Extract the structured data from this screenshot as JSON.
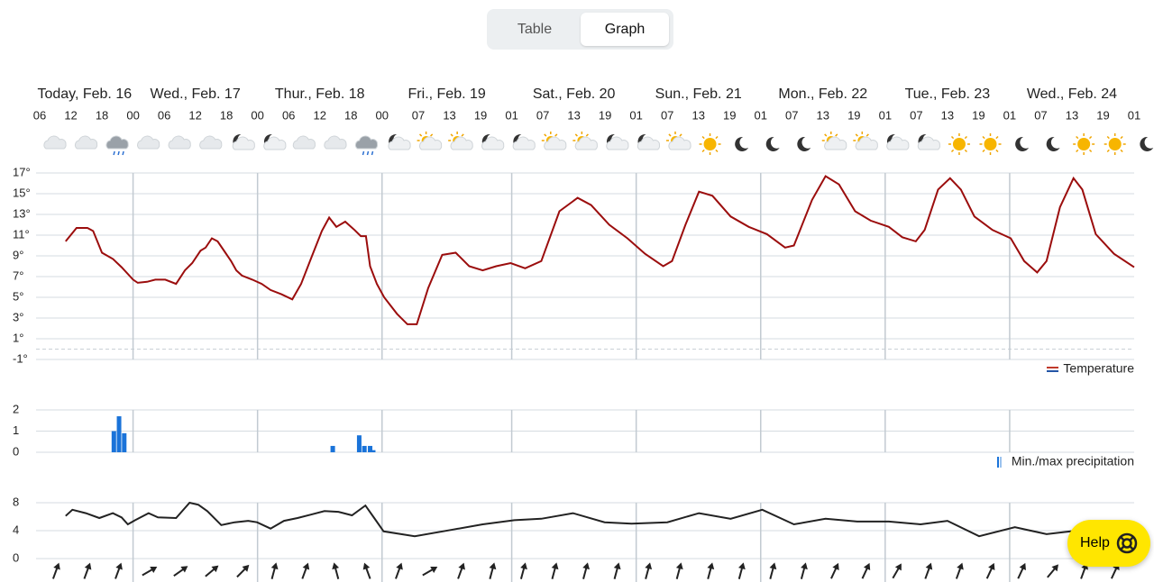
{
  "toggle": {
    "options": [
      "Table",
      "Graph"
    ],
    "selected": 1
  },
  "help": "Help",
  "chart_data": [
    {
      "type": "line",
      "name": "Temperature",
      "color": "#9b0d0d",
      "days": [
        "Today, Feb. 16",
        "Wed., Feb. 17",
        "Thur., Feb. 18",
        "Fri., Feb. 19",
        "Sat., Feb. 20",
        "Sun., Feb. 21",
        "Mon., Feb. 22",
        "Tue., Feb. 23",
        "Wed., Feb. 24"
      ],
      "day_lines": [
        24,
        48,
        72,
        97,
        121,
        145,
        169,
        193
      ],
      "xlim": [
        5.3,
        217
      ],
      "xticks": [
        {
          "value": 6,
          "label": "06"
        },
        {
          "value": 12,
          "label": "12"
        },
        {
          "value": 18,
          "label": "18"
        },
        {
          "value": 24,
          "label": "00"
        },
        {
          "value": 30,
          "label": "06"
        },
        {
          "value": 36,
          "label": "12"
        },
        {
          "value": 42,
          "label": "18"
        },
        {
          "value": 48,
          "label": "00"
        },
        {
          "value": 54,
          "label": "06"
        },
        {
          "value": 60,
          "label": "12"
        },
        {
          "value": 66,
          "label": "18"
        },
        {
          "value": 72,
          "label": "00"
        },
        {
          "value": 79,
          "label": "07"
        },
        {
          "value": 85,
          "label": "13"
        },
        {
          "value": 91,
          "label": "19"
        },
        {
          "value": 97,
          "label": "01"
        },
        {
          "value": 103,
          "label": "07"
        },
        {
          "value": 109,
          "label": "13"
        },
        {
          "value": 115,
          "label": "19"
        },
        {
          "value": 121,
          "label": "01"
        },
        {
          "value": 127,
          "label": "07"
        },
        {
          "value": 133,
          "label": "13"
        },
        {
          "value": 139,
          "label": "19"
        },
        {
          "value": 145,
          "label": "01"
        },
        {
          "value": 151,
          "label": "07"
        },
        {
          "value": 157,
          "label": "13"
        },
        {
          "value": 163,
          "label": "19"
        },
        {
          "value": 169,
          "label": "01"
        },
        {
          "value": 175,
          "label": "07"
        },
        {
          "value": 181,
          "label": "13"
        },
        {
          "value": 187,
          "label": "19"
        },
        {
          "value": 193,
          "label": "01"
        },
        {
          "value": 199,
          "label": "07"
        },
        {
          "value": 205,
          "label": "13"
        },
        {
          "value": 211,
          "label": "19"
        },
        {
          "value": 217,
          "label": "01"
        }
      ],
      "ylim": [
        -1,
        17
      ],
      "yticks": [
        {
          "value": -1,
          "label": "-1°"
        },
        {
          "value": 1,
          "label": "1°"
        },
        {
          "value": 3,
          "label": "3°"
        },
        {
          "value": 5,
          "label": "5°"
        },
        {
          "value": 7,
          "label": "7°"
        },
        {
          "value": 9,
          "label": "9°"
        },
        {
          "value": 11,
          "label": "11°"
        },
        {
          "value": 13,
          "label": "13°"
        },
        {
          "value": 15,
          "label": "15°"
        },
        {
          "value": 17,
          "label": "17°"
        }
      ],
      "baseline": 0,
      "legend": "Temperature",
      "x": [
        11,
        13.1,
        15.2,
        16.3,
        18,
        20.1,
        21.8,
        24,
        24.9,
        26.7,
        28.3,
        30.2,
        32.3,
        34,
        35.4,
        37,
        38,
        39.2,
        40.3,
        41.8,
        42.9,
        43.9,
        45,
        47,
        48.8,
        50.5,
        52.6,
        54.7,
        56.4,
        58.5,
        60.4,
        61.8,
        63.2,
        64.9,
        66.7,
        67.9,
        68.9,
        69.7,
        71,
        72.4,
        74.9,
        76.9,
        78.7,
        80.9,
        83.6,
        86.2,
        88.8,
        91.4,
        94,
        96.8,
        99.6,
        102.7,
        106.2,
        109.7,
        112.3,
        115.8,
        119.3,
        122.7,
        126.2,
        127.9,
        130.5,
        133.1,
        135.7,
        139.2,
        142.7,
        146.2,
        149.7,
        151.4,
        154.9,
        157.5,
        160.1,
        163.2,
        166.2,
        169.7,
        172.3,
        174.9,
        176.6,
        179.2,
        181.5,
        183.6,
        186.2,
        189.7,
        193.2,
        195.8,
        198.3,
        200.1,
        202.7,
        205.3,
        207,
        209.6,
        213.1,
        217
      ],
      "values": [
        10.4,
        11.7,
        11.7,
        11.4,
        9.3,
        8.7,
        7.9,
        6.7,
        6.4,
        6.5,
        6.7,
        6.7,
        6.3,
        7.6,
        8.3,
        9.5,
        9.8,
        10.7,
        10.4,
        9.3,
        8.5,
        7.6,
        7.1,
        6.7,
        6.3,
        5.7,
        5.3,
        4.8,
        6.3,
        9,
        11.4,
        12.7,
        11.8,
        12.3,
        11.5,
        10.9,
        10.9,
        8,
        6.3,
        5,
        3.4,
        2.4,
        2.4,
        5.9,
        9.1,
        9.3,
        8,
        7.6,
        8,
        8.3,
        7.8,
        8.5,
        13.3,
        14.6,
        13.9,
        12,
        10.7,
        9.2,
        8,
        8.5,
        12,
        15.2,
        14.8,
        12.8,
        11.8,
        11.1,
        9.8,
        10,
        14.4,
        16.7,
        15.9,
        13.3,
        12.4,
        11.8,
        10.8,
        10.4,
        11.5,
        15.4,
        16.5,
        15.4,
        12.8,
        11.5,
        10.7,
        8.5,
        7.4,
        8.5,
        13.7,
        16.5,
        15.4,
        11.1,
        9.2,
        7.9
      ]
    },
    {
      "type": "bar",
      "name": "Precipitation",
      "color": "#1a73d9",
      "legend": "Min./max precipitation",
      "xlim": [
        5.3,
        217
      ],
      "ylim": [
        0,
        2
      ],
      "yticks": [
        0,
        1,
        2
      ],
      "x": [
        20.3,
        21.3,
        22.3,
        62.5,
        67.6,
        68.6,
        69.7,
        70.3
      ],
      "values": [
        1,
        1.7,
        0.9,
        0.3,
        0.8,
        0.3,
        0.3,
        0.1
      ]
    },
    {
      "type": "line",
      "name": "Wind",
      "color": "#222222",
      "xlim": [
        5.3,
        217
      ],
      "ylim": [
        0,
        8
      ],
      "yticks": [
        0,
        4,
        8
      ],
      "x": [
        11,
        12.3,
        14.9,
        17.5,
        20.1,
        21.8,
        23,
        24.4,
        27,
        28.8,
        32.3,
        34.9,
        36.6,
        38.3,
        41,
        43.6,
        46.2,
        47.9,
        50.5,
        53.1,
        55.7,
        58.3,
        60.9,
        63.6,
        66.2,
        68.8,
        70.5,
        72.3,
        78.3,
        85.3,
        91.4,
        97.5,
        102.7,
        108.8,
        114.9,
        120.1,
        127,
        133.1,
        139.2,
        145.3,
        151.4,
        157.5,
        163.6,
        169.7,
        175.8,
        181,
        187.1,
        194,
        200.1,
        207
      ],
      "values": [
        6.1,
        7,
        6.5,
        5.8,
        6.5,
        5.9,
        4.9,
        5.5,
        6.5,
        5.9,
        5.8,
        8,
        7.7,
        6.8,
        4.8,
        5.2,
        5.4,
        5.2,
        4.3,
        5.4,
        5.8,
        6.3,
        6.8,
        6.7,
        6.2,
        7.6,
        5.8,
        3.9,
        3.2,
        4.1,
        4.9,
        5.5,
        5.7,
        6.5,
        5.2,
        5,
        5.2,
        6.5,
        5.7,
        7,
        4.9,
        5.7,
        5.3,
        5.3,
        4.9,
        5.4,
        3.2,
        4.5,
        3.5,
        4.1
      ]
    }
  ]
}
